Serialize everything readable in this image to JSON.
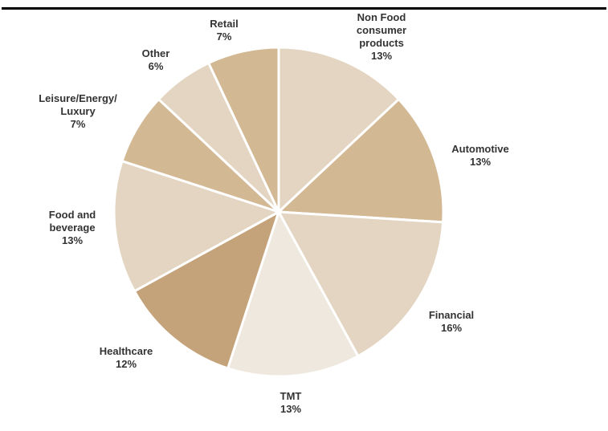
{
  "chart_data": {
    "type": "pie",
    "title": "",
    "slices": [
      {
        "label": [
          "Non Food",
          "consumer",
          "products"
        ],
        "value": 13,
        "value_label": "13%",
        "color": "#e3d5c1"
      },
      {
        "label": [
          "Automotive"
        ],
        "value": 13,
        "value_label": "13%",
        "color": "#d2b893"
      },
      {
        "label": [
          "Financial"
        ],
        "value": 16,
        "value_label": "16%",
        "color": "#e3d5c1"
      },
      {
        "label": [
          "TMT"
        ],
        "value": 13,
        "value_label": "13%",
        "color": "#efe8de"
      },
      {
        "label": [
          "Healthcare"
        ],
        "value": 12,
        "value_label": "12%",
        "color": "#c4a37a"
      },
      {
        "label": [
          "Food and",
          "beverage"
        ],
        "value": 13,
        "value_label": "13%",
        "color": "#e3d5c1"
      },
      {
        "label": [
          "Leisure/Energy/",
          "Luxury"
        ],
        "value": 7,
        "value_label": "7%",
        "color": "#d2b893"
      },
      {
        "label": [
          "Other"
        ],
        "value": 6,
        "value_label": "6%",
        "color": "#e3d5c1"
      },
      {
        "label": [
          "Retail"
        ],
        "value": 7,
        "value_label": "7%",
        "color": "#d2b893"
      }
    ],
    "start": "12 o'clock",
    "direction": "clockwise",
    "legend": "none",
    "slice_border_color": "#ffffff"
  }
}
